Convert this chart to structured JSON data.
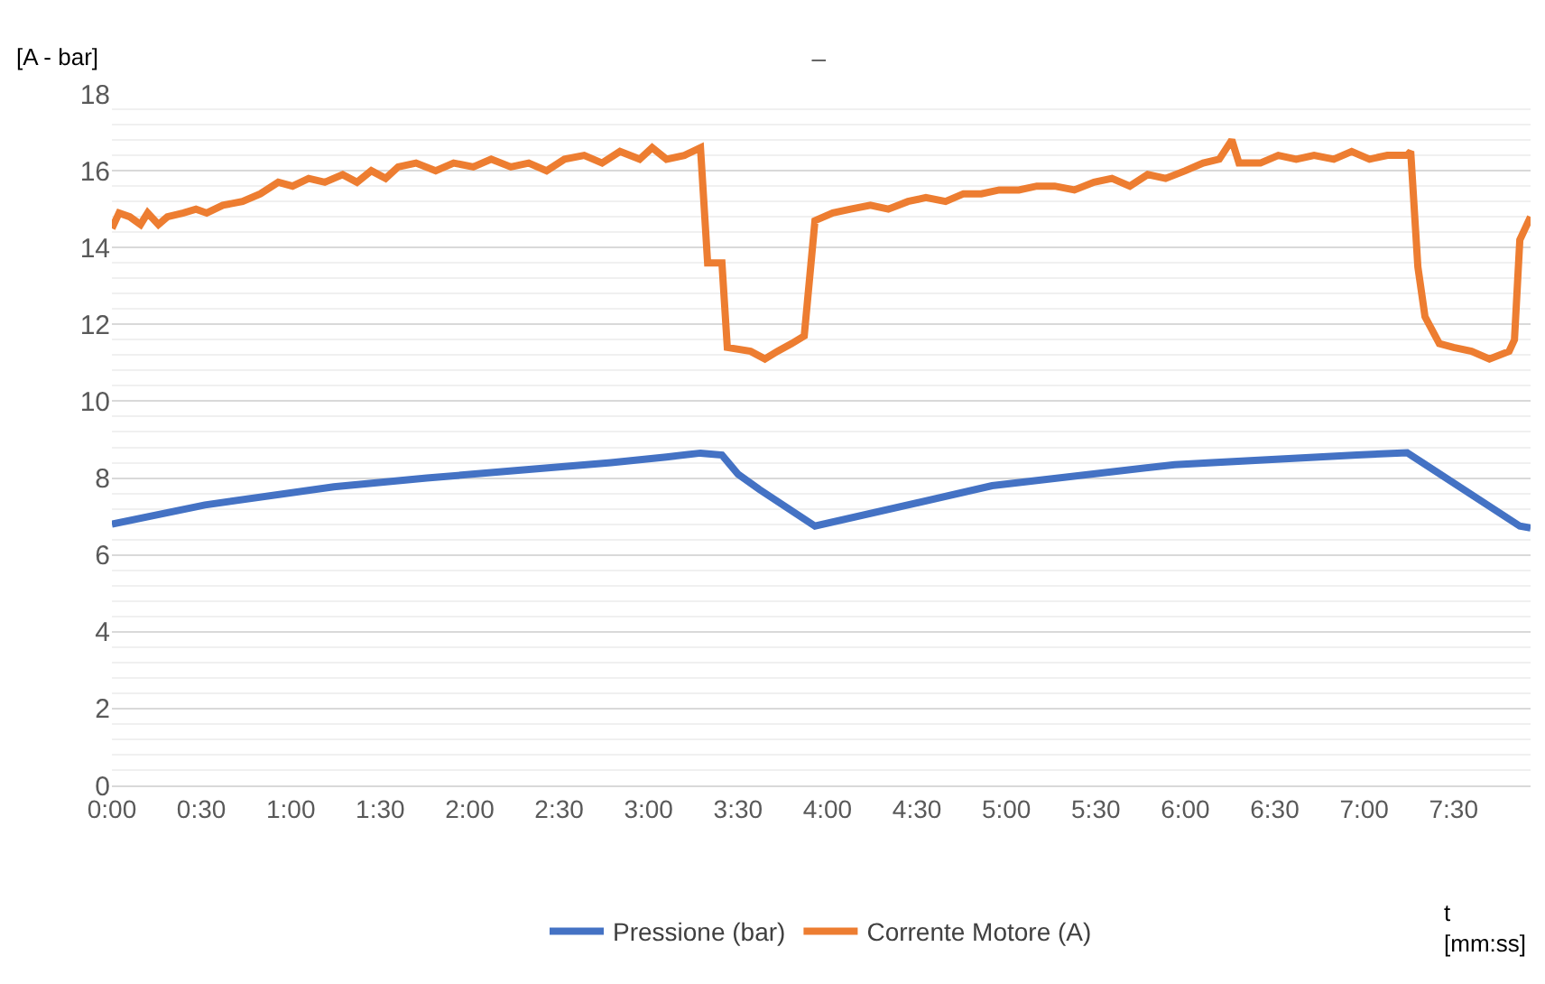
{
  "chart_data": {
    "type": "line",
    "title": "–",
    "ylabel": "[A - bar]",
    "xlabel": "t\n[mm:ss]",
    "xlim": [
      0,
      7.93
    ],
    "ylim": [
      0,
      18
    ],
    "xticks": [
      {
        "value": 0,
        "label": "0:00"
      },
      {
        "value": 0.5,
        "label": "0:30"
      },
      {
        "value": 1,
        "label": "1:00"
      },
      {
        "value": 1.5,
        "label": "1:30"
      },
      {
        "value": 2,
        "label": "2:00"
      },
      {
        "value": 2.5,
        "label": "2:30"
      },
      {
        "value": 3,
        "label": "3:00"
      },
      {
        "value": 3.5,
        "label": "3:30"
      },
      {
        "value": 4,
        "label": "4:00"
      },
      {
        "value": 4.5,
        "label": "4:30"
      },
      {
        "value": 5,
        "label": "5:00"
      },
      {
        "value": 5.5,
        "label": "5:30"
      },
      {
        "value": 6,
        "label": "6:00"
      },
      {
        "value": 6.5,
        "label": "6:30"
      },
      {
        "value": 7,
        "label": "7:00"
      },
      {
        "value": 7.5,
        "label": "7:30"
      }
    ],
    "yticks": [
      0,
      2,
      4,
      6,
      8,
      10,
      12,
      14,
      16,
      18
    ],
    "grid": "y",
    "legend": "bottom",
    "marker": "none",
    "line_style": "solid",
    "series": [
      {
        "name": "Pressione (bar)",
        "color": "#4472c4",
        "x": [
          0,
          0.52,
          1.24,
          1.76,
          2.27,
          2.79,
          3.1,
          3.29,
          3.41,
          3.5,
          3.62,
          3.93,
          4.92,
          5.94,
          6.96,
          7.24,
          7.87,
          7.93
        ],
        "values": [
          6.8,
          7.3,
          7.77,
          8.0,
          8.2,
          8.4,
          8.55,
          8.65,
          8.6,
          8.1,
          7.7,
          6.75,
          7.8,
          8.35,
          8.6,
          8.66,
          6.75,
          6.7
        ]
      },
      {
        "name": "Corrente Motore (A)",
        "color": "#ed7d31",
        "x": [
          0,
          0.04,
          0.1,
          0.16,
          0.2,
          0.26,
          0.31,
          0.4,
          0.47,
          0.53,
          0.62,
          0.73,
          0.83,
          0.93,
          1.01,
          1.1,
          1.19,
          1.29,
          1.37,
          1.45,
          1.53,
          1.6,
          1.7,
          1.81,
          1.91,
          2.02,
          2.12,
          2.23,
          2.33,
          2.43,
          2.53,
          2.64,
          2.74,
          2.84,
          2.95,
          3.02,
          3.1,
          3.2,
          3.29,
          3.33,
          3.41,
          3.44,
          3.57,
          3.65,
          3.72,
          3.8,
          3.87,
          3.93,
          4.03,
          4.13,
          4.24,
          4.34,
          4.45,
          4.55,
          4.66,
          4.76,
          4.86,
          4.96,
          5.07,
          5.17,
          5.27,
          5.38,
          5.49,
          5.59,
          5.69,
          5.79,
          5.89,
          6.0,
          6.1,
          6.19,
          6.26,
          6.3,
          6.42,
          6.52,
          6.62,
          6.72,
          6.83,
          6.93,
          7.03,
          7.13,
          7.24,
          7.26,
          7.3,
          7.34,
          7.42,
          7.5,
          7.6,
          7.7,
          7.81,
          7.84,
          7.87,
          7.93
        ],
        "values": [
          14.5,
          14.9,
          14.8,
          14.6,
          14.9,
          14.6,
          14.8,
          14.9,
          15.0,
          14.9,
          15.1,
          15.2,
          15.4,
          15.7,
          15.6,
          15.8,
          15.7,
          15.9,
          15.7,
          16.0,
          15.8,
          16.1,
          16.2,
          16.0,
          16.2,
          16.1,
          16.3,
          16.1,
          16.2,
          16.0,
          16.3,
          16.4,
          16.2,
          16.5,
          16.3,
          16.6,
          16.3,
          16.4,
          16.6,
          13.6,
          13.6,
          11.4,
          11.3,
          11.1,
          11.3,
          11.5,
          11.7,
          14.7,
          14.9,
          15.0,
          15.1,
          15.0,
          15.2,
          15.3,
          15.2,
          15.4,
          15.4,
          15.5,
          15.5,
          15.6,
          15.6,
          15.5,
          15.7,
          15.8,
          15.6,
          15.9,
          15.8,
          16.0,
          16.2,
          16.3,
          16.8,
          16.2,
          16.2,
          16.4,
          16.3,
          16.4,
          16.3,
          16.5,
          16.3,
          16.4,
          16.4,
          16.5,
          13.5,
          12.2,
          11.5,
          11.4,
          11.3,
          11.1,
          11.3,
          11.6,
          14.2,
          14.8
        ]
      }
    ]
  }
}
